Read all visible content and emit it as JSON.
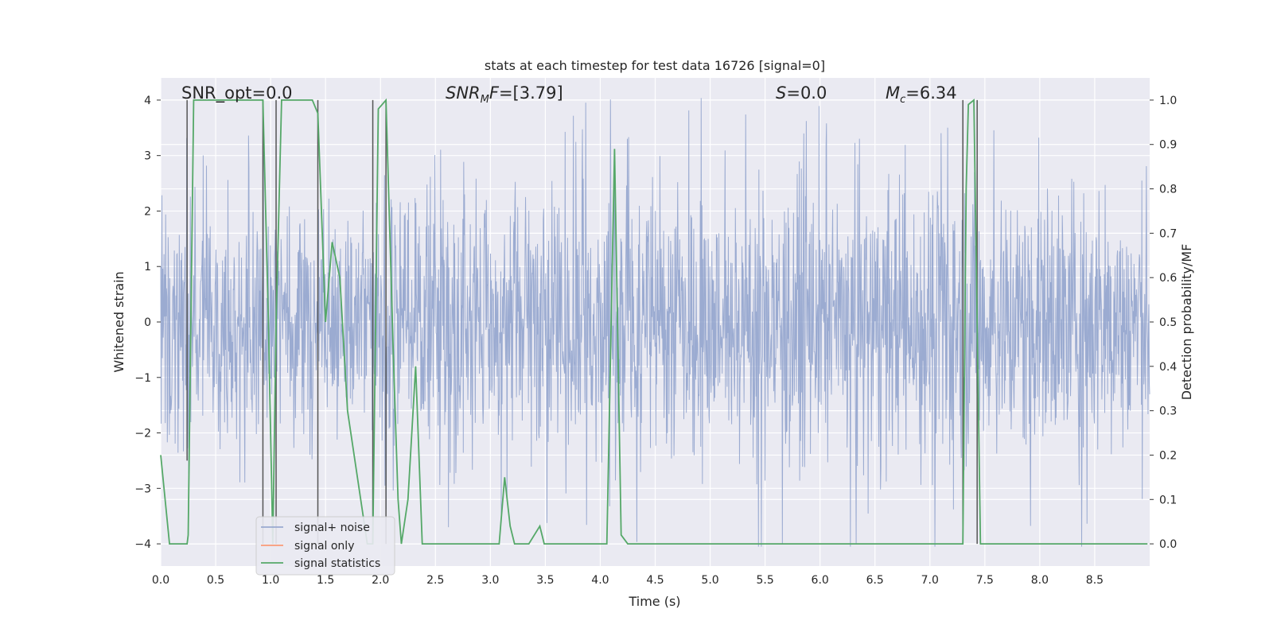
{
  "chart_data": {
    "type": "line",
    "title": "stats at each timestep for test data 16726 [signal=0]",
    "xlabel": "Time (s)",
    "ylabel": "Whitened strain",
    "ylabel_right": "Detection probability/MF",
    "xlim": [
      0,
      9.0
    ],
    "ylim": [
      -4.4,
      4.4
    ],
    "ylim_right": [
      -0.05,
      1.05
    ],
    "xticks": [
      "0.0",
      "0.5",
      "1.0",
      "1.5",
      "2.0",
      "2.5",
      "3.0",
      "3.5",
      "4.0",
      "4.5",
      "5.0",
      "5.5",
      "6.0",
      "6.5",
      "7.0",
      "7.5",
      "8.0",
      "8.5"
    ],
    "yticks": [
      "4",
      "3",
      "2",
      "1",
      "0",
      "−1",
      "−2",
      "−3",
      "−4"
    ],
    "yticks_right": [
      "1.0",
      "0.9",
      "0.8",
      "0.7",
      "0.6",
      "0.5",
      "0.4",
      "0.3",
      "0.2",
      "0.1",
      "0.0"
    ],
    "grid": true,
    "legend_position": "lower-left",
    "annotations": [
      {
        "id": "snr-opt",
        "text": "SNR_opt=0.0",
        "x": 0.2,
        "y": 4.1
      },
      {
        "id": "snr-mf",
        "text": "SNR_MF=[3.79]",
        "x": 2.6,
        "y": 4.1
      },
      {
        "id": "s",
        "text": "S=0.0",
        "x": 5.6,
        "y": 4.1
      },
      {
        "id": "mc",
        "text": "M_c=6.34",
        "x": 6.6,
        "y": 4.1
      }
    ],
    "series": [
      {
        "name": "signal+ noise",
        "color": "#8da0cb",
        "kind": "noise",
        "envelope": [
          [
            0.0,
            2.5
          ],
          [
            0.3,
            2.7
          ],
          [
            0.6,
            2.4
          ],
          [
            0.9,
            2.6
          ],
          [
            1.2,
            2.5
          ],
          [
            1.5,
            2.3
          ],
          [
            1.8,
            2.6
          ],
          [
            2.1,
            2.9
          ],
          [
            2.4,
            2.8
          ],
          [
            2.7,
            3.4
          ],
          [
            3.0,
            3.0
          ],
          [
            3.3,
            2.9
          ],
          [
            3.6,
            3.1
          ],
          [
            3.9,
            3.0
          ],
          [
            4.2,
            3.2
          ],
          [
            4.5,
            3.1
          ],
          [
            4.8,
            3.2
          ],
          [
            5.1,
            3.0
          ],
          [
            5.4,
            3.2
          ],
          [
            5.7,
            3.3
          ],
          [
            6.0,
            3.1
          ],
          [
            6.3,
            3.2
          ],
          [
            6.6,
            3.1
          ],
          [
            6.9,
            3.4
          ],
          [
            7.2,
            3.3
          ],
          [
            7.5,
            3.0
          ],
          [
            7.8,
            3.1
          ],
          [
            8.1,
            3.2
          ],
          [
            8.4,
            3.2
          ],
          [
            8.7,
            3.0
          ],
          [
            9.0,
            3.0
          ]
        ]
      },
      {
        "name": "signal only",
        "color": "#fc8d62",
        "x": [],
        "y": []
      },
      {
        "name": "signal statistics",
        "color": "#55a868",
        "axis": "right",
        "x": [
          0.0,
          0.08,
          0.24,
          0.25,
          0.3,
          0.93,
          0.98,
          1.02,
          1.05,
          1.1,
          1.38,
          1.43,
          1.5,
          1.56,
          1.63,
          1.7,
          1.88,
          1.93,
          1.98,
          2.05,
          2.12,
          2.16,
          2.19,
          2.25,
          2.32,
          2.38,
          2.5,
          2.8,
          3.08,
          3.13,
          3.18,
          3.22,
          3.28,
          3.35,
          3.45,
          3.49,
          3.55,
          3.6,
          4.06,
          4.13,
          4.19,
          4.25,
          4.5,
          6.0,
          7.3,
          7.33,
          7.35,
          7.4,
          7.46,
          7.5,
          8.0,
          8.5,
          8.55,
          8.6,
          8.98
        ],
        "y": [
          0.2,
          0.0,
          0.0,
          0.02,
          1.0,
          1.0,
          0.5,
          0.0,
          0.5,
          1.0,
          1.0,
          0.97,
          0.5,
          0.68,
          0.6,
          0.3,
          0.0,
          0.0,
          0.98,
          1.0,
          0.4,
          0.1,
          0.0,
          0.1,
          0.4,
          0.0,
          0.0,
          0.0,
          0.0,
          0.15,
          0.04,
          0.0,
          0.0,
          0.0,
          0.04,
          0.0,
          0.0,
          0.0,
          0.0,
          0.89,
          0.02,
          0.0,
          0.0,
          0.0,
          0.0,
          0.8,
          0.99,
          1.0,
          0.0,
          0.0,
          0.0,
          0.0,
          0.0,
          0.0,
          0.0
        ]
      }
    ],
    "vertical_lines": [
      {
        "x": 0.24,
        "y0": -2.5,
        "y1": 4.0
      },
      {
        "x": 0.93,
        "y0": -4.0,
        "y1": 4.0
      },
      {
        "x": 1.05,
        "y0": -4.0,
        "y1": 4.0
      },
      {
        "x": 1.43,
        "y0": -4.0,
        "y1": 4.0
      },
      {
        "x": 1.93,
        "y0": -4.0,
        "y1": 4.0
      },
      {
        "x": 2.05,
        "y0": -4.0,
        "y1": 4.0
      },
      {
        "x": 7.3,
        "y0": -4.0,
        "y1": 4.0
      },
      {
        "x": 7.43,
        "y0": -4.0,
        "y1": 4.0
      }
    ]
  }
}
